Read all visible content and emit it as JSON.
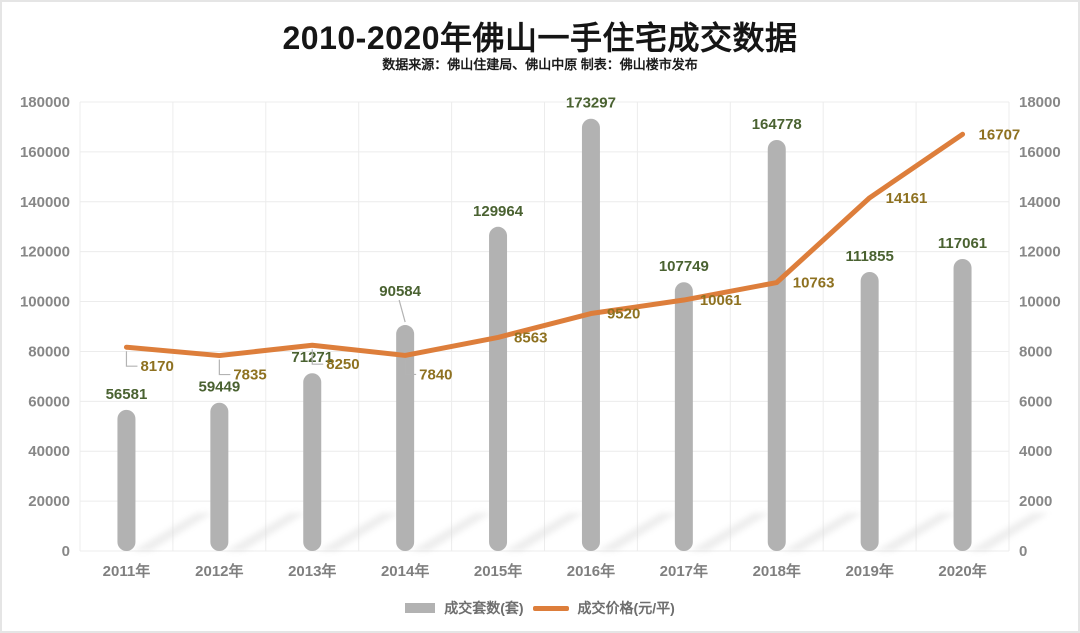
{
  "title": "2010-2020年佛山一手住宅成交数据",
  "subtitle": "数据来源：佛山住建局、佛山中原 制表：佛山楼市发布",
  "legend": {
    "bars_label": "成交套数(套)",
    "line_label": "成交价格(元/平)",
    "position": "bottom"
  },
  "colors": {
    "bar": "#b2b2b2",
    "line": "#dd7e3b",
    "bar_label": "#4a6231",
    "line_label": "#8e7120",
    "left_axis_text": "#878787",
    "right_axis_text": "#878787",
    "x_axis_text": "#7f7f7f",
    "legend_text": "#6e6e6e",
    "grid": "#ececec",
    "leader": "#b3b3b3",
    "shadow": "#d9d9d9",
    "title_text": "#151515"
  },
  "chart_data": {
    "type": "combo-bar-line",
    "categories": [
      "2011年",
      "2012年",
      "2013年",
      "2014年",
      "2015年",
      "2016年",
      "2017年",
      "2018年",
      "2019年",
      "2020年"
    ],
    "series": [
      {
        "name": "成交套数(套)",
        "type": "bar",
        "axis": "left",
        "values": [
          56581,
          59449,
          71271,
          90584,
          129964,
          173297,
          107749,
          164778,
          111855,
          117061
        ]
      },
      {
        "name": "成交价格(元/平)",
        "type": "line",
        "axis": "right",
        "values": [
          8170,
          7835,
          8250,
          7840,
          8563,
          9520,
          10061,
          10763,
          14161,
          16707
        ]
      }
    ],
    "left_axis": {
      "min": 0,
      "max": 180000,
      "step": 20000,
      "ticks": [
        "0",
        "20000",
        "40000",
        "60000",
        "80000",
        "100000",
        "120000",
        "140000",
        "160000",
        "180000"
      ]
    },
    "right_axis": {
      "min": 0,
      "max": 18000,
      "step": 2000,
      "ticks": [
        "0",
        "2000",
        "4000",
        "6000",
        "8000",
        "10000",
        "12000",
        "14000",
        "16000",
        "18000"
      ]
    },
    "grid": true,
    "data_labels": true,
    "legend_position": "bottom"
  }
}
